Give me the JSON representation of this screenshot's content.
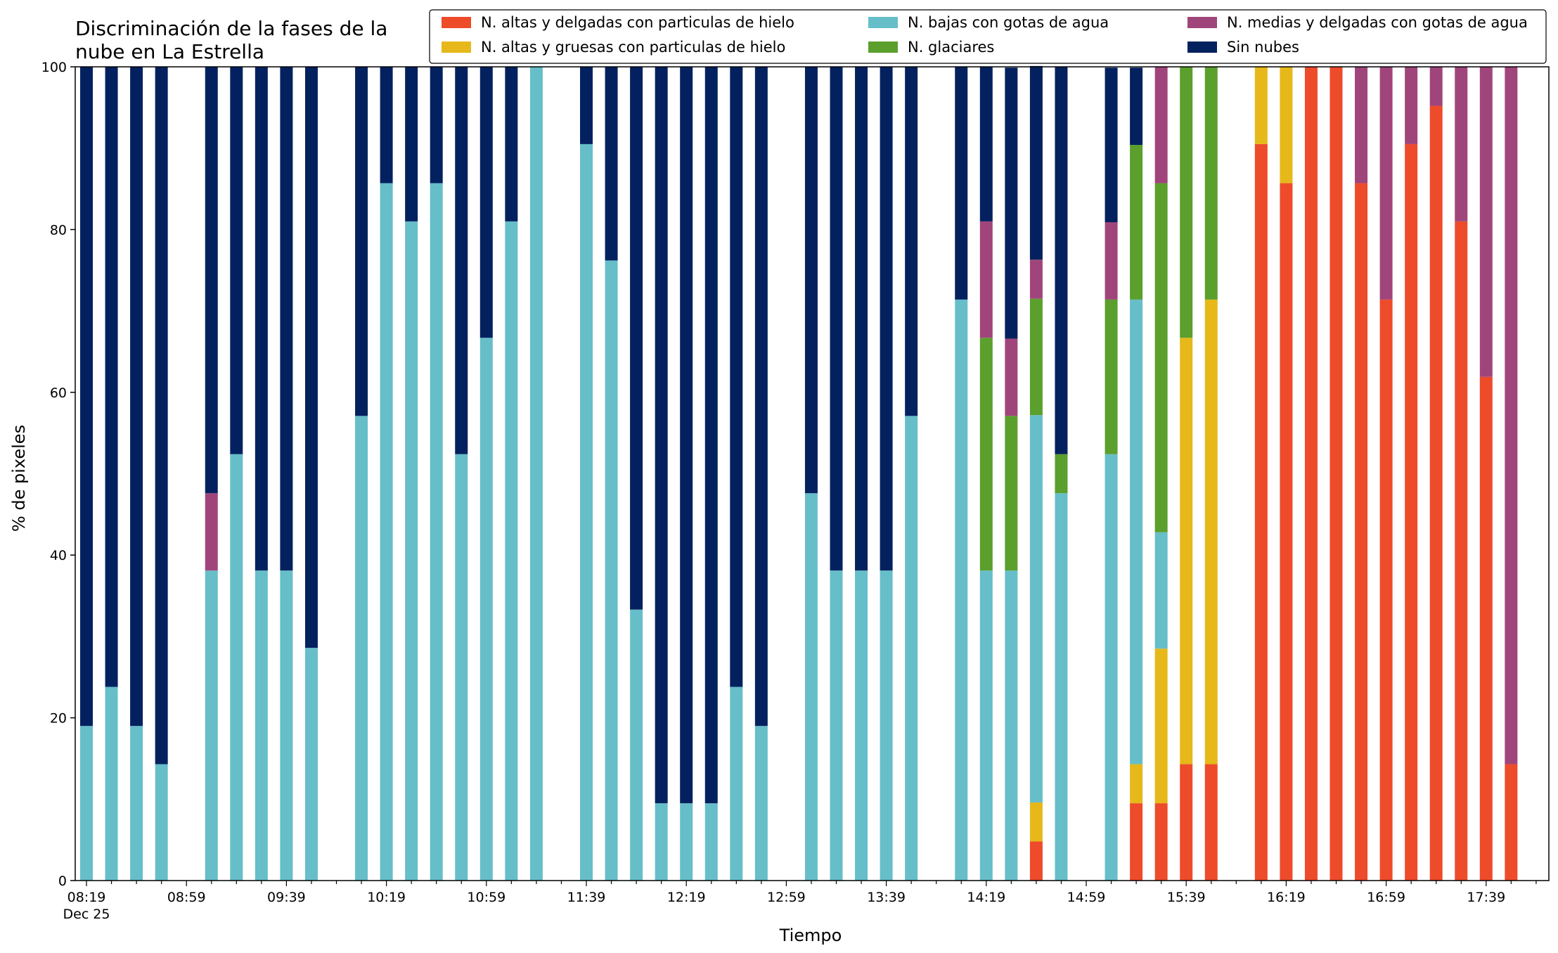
{
  "chart_data": {
    "type": "bar",
    "stacked": true,
    "title_lines": [
      "Discriminación de la fases de la",
      "nube en La Estrella"
    ],
    "xlabel": "Tiempo",
    "ylabel": "% de pixeles",
    "ylim": [
      0,
      100
    ],
    "yticks": [
      0,
      20,
      40,
      60,
      80,
      100
    ],
    "x_tick_labels": [
      "08:19",
      "08:59",
      "09:39",
      "10:19",
      "10:59",
      "11:39",
      "12:19",
      "12:59",
      "13:39",
      "14:19",
      "14:59",
      "15:39",
      "16:19",
      "16:59",
      "17:39"
    ],
    "x_date_label": "Dec 25",
    "x_start": "08:19",
    "x_interval_minutes": 10,
    "x_end": "17:59",
    "grid": false,
    "legend_position": "top-right",
    "series": [
      {
        "name": "N. altas y delgadas con particulas de hielo",
        "color": "#ee4b2b"
      },
      {
        "name": "N. altas y gruesas con particulas de hielo",
        "color": "#e6b81a"
      },
      {
        "name": "N. bajas con gotas de agua",
        "color": "#66bec9"
      },
      {
        "name": "N. glaciares",
        "color": "#5b9f2c"
      },
      {
        "name": "N. medias y delgadas con gotas de agua",
        "color": "#a0457b"
      },
      {
        "name": "Sin nubes",
        "color": "#04215f"
      }
    ],
    "bars": [
      {
        "time": "08:19",
        "values": [
          0,
          0,
          19,
          0,
          0,
          81
        ]
      },
      {
        "time": "08:29",
        "values": [
          0,
          0,
          23.8,
          0,
          0,
          76.2
        ]
      },
      {
        "time": "08:39",
        "values": [
          0,
          0,
          19,
          0,
          0,
          81
        ]
      },
      {
        "time": "08:49",
        "values": [
          0,
          0,
          14.3,
          0,
          0,
          85.7
        ]
      },
      {
        "time": "09:09",
        "values": [
          0,
          0,
          38.1,
          0,
          9.5,
          52.4
        ]
      },
      {
        "time": "09:19",
        "values": [
          0,
          0,
          52.4,
          0,
          0,
          47.6
        ]
      },
      {
        "time": "09:29",
        "values": [
          0,
          0,
          38.1,
          0,
          0,
          61.9
        ]
      },
      {
        "time": "09:39",
        "values": [
          0,
          0,
          38.1,
          0,
          0,
          61.9
        ]
      },
      {
        "time": "09:49",
        "values": [
          0,
          0,
          28.6,
          0,
          0,
          71.4
        ]
      },
      {
        "time": "10:09",
        "values": [
          0,
          0,
          57.1,
          0,
          0,
          42.9
        ]
      },
      {
        "time": "10:19",
        "values": [
          0,
          0,
          85.7,
          0,
          0,
          14.3
        ]
      },
      {
        "time": "10:29",
        "values": [
          0,
          0,
          81,
          0,
          0,
          19
        ]
      },
      {
        "time": "10:39",
        "values": [
          0,
          0,
          85.7,
          0,
          0,
          14.3
        ]
      },
      {
        "time": "10:49",
        "values": [
          0,
          0,
          52.4,
          0,
          0,
          47.6
        ]
      },
      {
        "time": "10:59",
        "values": [
          0,
          0,
          66.7,
          0,
          0,
          33.3
        ]
      },
      {
        "time": "11:09",
        "values": [
          0,
          0,
          81,
          0,
          0,
          19
        ]
      },
      {
        "time": "11:19",
        "values": [
          0,
          0,
          100,
          0,
          0,
          0
        ]
      },
      {
        "time": "11:39",
        "values": [
          0,
          0,
          90.5,
          0,
          0,
          9.5
        ]
      },
      {
        "time": "11:49",
        "values": [
          0,
          0,
          76.2,
          0,
          0,
          23.8
        ]
      },
      {
        "time": "11:59",
        "values": [
          0,
          0,
          33.3,
          0,
          0,
          66.7
        ]
      },
      {
        "time": "12:09",
        "values": [
          0,
          0,
          9.5,
          0,
          0,
          90.5
        ]
      },
      {
        "time": "12:19",
        "values": [
          0,
          0,
          9.5,
          0,
          0,
          90.5
        ]
      },
      {
        "time": "12:29",
        "values": [
          0,
          0,
          9.5,
          0,
          0,
          90.5
        ]
      },
      {
        "time": "12:39",
        "values": [
          0,
          0,
          23.8,
          0,
          0,
          76.2
        ]
      },
      {
        "time": "12:49",
        "values": [
          0,
          0,
          19,
          0,
          0,
          81
        ]
      },
      {
        "time": "13:09",
        "values": [
          0,
          0,
          47.6,
          0,
          0,
          52.4
        ]
      },
      {
        "time": "13:19",
        "values": [
          0,
          0,
          38.1,
          0,
          0,
          61.9
        ]
      },
      {
        "time": "13:29",
        "values": [
          0,
          0,
          38.1,
          0,
          0,
          61.9
        ]
      },
      {
        "time": "13:39",
        "values": [
          0,
          0,
          38.1,
          0,
          0,
          61.9
        ]
      },
      {
        "time": "13:49",
        "values": [
          0,
          0,
          57.1,
          0,
          0,
          42.9
        ]
      },
      {
        "time": "14:09",
        "values": [
          0,
          0,
          71.4,
          0,
          0,
          28.6
        ]
      },
      {
        "time": "14:19",
        "values": [
          0,
          0,
          38.1,
          28.6,
          14.3,
          19
        ]
      },
      {
        "time": "14:29",
        "values": [
          0,
          0,
          38.1,
          19,
          9.5,
          33.3
        ]
      },
      {
        "time": "14:39",
        "values": [
          4.8,
          4.8,
          47.6,
          14.3,
          4.8,
          23.8
        ]
      },
      {
        "time": "14:49",
        "values": [
          0,
          0,
          47.6,
          4.8,
          0,
          47.6
        ]
      },
      {
        "time": "15:09",
        "values": [
          0,
          0,
          52.4,
          19,
          9.5,
          19
        ]
      },
      {
        "time": "15:19",
        "values": [
          9.5,
          4.8,
          57.1,
          19,
          0,
          9.5
        ]
      },
      {
        "time": "15:29",
        "values": [
          9.5,
          19,
          14.3,
          42.9,
          14.3,
          0
        ]
      },
      {
        "time": "15:39",
        "values": [
          14.3,
          52.4,
          0,
          33.3,
          0,
          0
        ]
      },
      {
        "time": "15:49",
        "values": [
          14.3,
          57.1,
          0,
          28.6,
          0,
          0
        ]
      },
      {
        "time": "16:09",
        "values": [
          90.5,
          9.5,
          0,
          0,
          0,
          0
        ]
      },
      {
        "time": "16:19",
        "values": [
          85.7,
          14.3,
          0,
          0,
          0,
          0
        ]
      },
      {
        "time": "16:29",
        "values": [
          100,
          0,
          0,
          0,
          0,
          0
        ]
      },
      {
        "time": "16:39",
        "values": [
          100,
          0,
          0,
          0,
          0,
          0
        ]
      },
      {
        "time": "16:49",
        "values": [
          85.7,
          0,
          0,
          0,
          14.3,
          0
        ]
      },
      {
        "time": "16:59",
        "values": [
          71.4,
          0,
          0,
          0,
          28.6,
          0
        ]
      },
      {
        "time": "17:09",
        "values": [
          90.5,
          0,
          0,
          0,
          9.5,
          0
        ]
      },
      {
        "time": "17:19",
        "values": [
          95.2,
          0,
          0,
          0,
          4.8,
          0
        ]
      },
      {
        "time": "17:29",
        "values": [
          81,
          0,
          0,
          0,
          19,
          0
        ]
      },
      {
        "time": "17:39",
        "values": [
          61.9,
          0,
          0,
          0,
          38.1,
          0
        ]
      },
      {
        "time": "17:49",
        "values": [
          14.3,
          0,
          0,
          0,
          85.7,
          0
        ]
      }
    ]
  }
}
